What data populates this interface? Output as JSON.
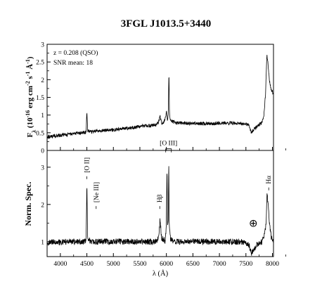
{
  "figure": {
    "title": "3FGL J1013.5+3440"
  },
  "chart_data": [
    {
      "type": "line",
      "panel": "top",
      "ylabel_html": "F<sub>λ</sub> (10<sup>-16</sup> erg cm<sup>-2</sup> s<sup>-1</sup> Å<sup>-1</sup>)",
      "ylabel_text": "Fλ (10-16 erg cm-2 s-1 Å-1)",
      "xlim": [
        3750,
        8020
      ],
      "ylim": [
        0,
        3
      ],
      "yticks": [
        0,
        0.5,
        1,
        1.5,
        2,
        2.5,
        3
      ],
      "ytick_labels": [
        "0",
        "0.5",
        "1",
        "1.5",
        "2",
        "2.5",
        "3"
      ],
      "annotations": [
        "z = 0.208 (QSO)",
        "SNR mean: 18"
      ],
      "series_color": "#000000",
      "spectrum": [
        [
          3750,
          0.38
        ],
        [
          3850,
          0.4
        ],
        [
          3950,
          0.42
        ],
        [
          4050,
          0.44
        ],
        [
          4150,
          0.45
        ],
        [
          4250,
          0.47
        ],
        [
          4350,
          0.49
        ],
        [
          4450,
          0.5
        ],
        [
          4485,
          0.52
        ],
        [
          4500,
          1.1
        ],
        [
          4515,
          0.55
        ],
        [
          4600,
          0.52
        ],
        [
          4700,
          0.55
        ],
        [
          4800,
          0.56
        ],
        [
          4900,
          0.58
        ],
        [
          5000,
          0.58
        ],
        [
          5100,
          0.6
        ],
        [
          5200,
          0.62
        ],
        [
          5300,
          0.63
        ],
        [
          5400,
          0.65
        ],
        [
          5500,
          0.68
        ],
        [
          5600,
          0.7
        ],
        [
          5700,
          0.7
        ],
        [
          5800,
          0.72
        ],
        [
          5850,
          0.78
        ],
        [
          5880,
          0.95
        ],
        [
          5910,
          0.78
        ],
        [
          5950,
          0.8
        ],
        [
          5980,
          0.92
        ],
        [
          6000,
          1.1
        ],
        [
          6020,
          0.85
        ],
        [
          6035,
          1.0
        ],
        [
          6048,
          2.22
        ],
        [
          6060,
          1.0
        ],
        [
          6080,
          0.82
        ],
        [
          6200,
          0.78
        ],
        [
          6400,
          0.77
        ],
        [
          6600,
          0.76
        ],
        [
          6800,
          0.76
        ],
        [
          7000,
          0.77
        ],
        [
          7200,
          0.78
        ],
        [
          7400,
          0.76
        ],
        [
          7550,
          0.72
        ],
        [
          7600,
          0.5
        ],
        [
          7650,
          0.6
        ],
        [
          7700,
          0.66
        ],
        [
          7750,
          0.72
        ],
        [
          7800,
          0.8
        ],
        [
          7840,
          1.0
        ],
        [
          7870,
          1.6
        ],
        [
          7895,
          2.7
        ],
        [
          7920,
          2.4
        ],
        [
          7950,
          1.9
        ],
        [
          7980,
          1.7
        ],
        [
          8020,
          1.6
        ]
      ]
    },
    {
      "type": "line",
      "panel": "bottom",
      "ylabel": "Norm. Spec.",
      "xlabel": "λ (Å)",
      "xlim": [
        3750,
        8020
      ],
      "ylim": [
        0.6,
        3.45
      ],
      "xticks": [
        4000,
        4500,
        5000,
        5500,
        6000,
        6500,
        7000,
        7500,
        8000
      ],
      "xtick_labels": [
        "4000",
        "4500",
        "5000",
        "5500",
        "6000",
        "6500",
        "7000",
        "7500",
        "8000"
      ],
      "yticks": [
        1,
        2,
        3
      ],
      "ytick_labels": [
        "1",
        "2",
        "3"
      ],
      "series_color": "#000000",
      "line_labels": [
        {
          "text": "[O II]",
          "x": 4500,
          "y": 2.85
        },
        {
          "text": "[Ne III]",
          "x": 4675,
          "y": 2.05
        },
        {
          "text": "Hβ",
          "x": 5875,
          "y": 2.05
        },
        {
          "text": "[O III]",
          "x": 6040,
          "y": 3.55
        },
        {
          "text": "Hα",
          "x": 7930,
          "y": 2.55
        },
        {
          "text": "⊕",
          "x": 7640,
          "y": 1.4
        }
      ],
      "spectrum": [
        [
          3750,
          0.95
        ],
        [
          3850,
          1.0
        ],
        [
          3950,
          0.98
        ],
        [
          4050,
          1.0
        ],
        [
          4150,
          1.0
        ],
        [
          4250,
          1.0
        ],
        [
          4350,
          1.0
        ],
        [
          4450,
          1.0
        ],
        [
          4485,
          1.02
        ],
        [
          4500,
          2.62
        ],
        [
          4515,
          1.05
        ],
        [
          4600,
          1.0
        ],
        [
          4700,
          1.0
        ],
        [
          4800,
          1.0
        ],
        [
          4900,
          1.0
        ],
        [
          5000,
          1.0
        ],
        [
          5100,
          1.0
        ],
        [
          5200,
          1.0
        ],
        [
          5300,
          1.0
        ],
        [
          5400,
          1.0
        ],
        [
          5500,
          1.0
        ],
        [
          5600,
          1.0
        ],
        [
          5700,
          1.0
        ],
        [
          5800,
          1.0
        ],
        [
          5850,
          1.1
        ],
        [
          5880,
          1.62
        ],
        [
          5910,
          1.1
        ],
        [
          5950,
          1.05
        ],
        [
          5980,
          1.0
        ],
        [
          6000,
          1.55
        ],
        [
          6012,
          3.1
        ],
        [
          6022,
          1.5
        ],
        [
          6035,
          1.6
        ],
        [
          6045,
          3.2
        ],
        [
          6055,
          1.4
        ],
        [
          6080,
          1.05
        ],
        [
          6200,
          1.0
        ],
        [
          6400,
          1.0
        ],
        [
          6600,
          1.0
        ],
        [
          6800,
          1.0
        ],
        [
          7000,
          1.0
        ],
        [
          7200,
          1.0
        ],
        [
          7400,
          1.0
        ],
        [
          7550,
          0.95
        ],
        [
          7600,
          0.68
        ],
        [
          7650,
          0.8
        ],
        [
          7700,
          0.9
        ],
        [
          7750,
          0.95
        ],
        [
          7800,
          1.0
        ],
        [
          7850,
          1.2
        ],
        [
          7880,
          1.5
        ],
        [
          7900,
          2.3
        ],
        [
          7920,
          2.0
        ],
        [
          7950,
          1.4
        ],
        [
          7980,
          1.1
        ],
        [
          8020,
          0.98
        ]
      ]
    }
  ]
}
